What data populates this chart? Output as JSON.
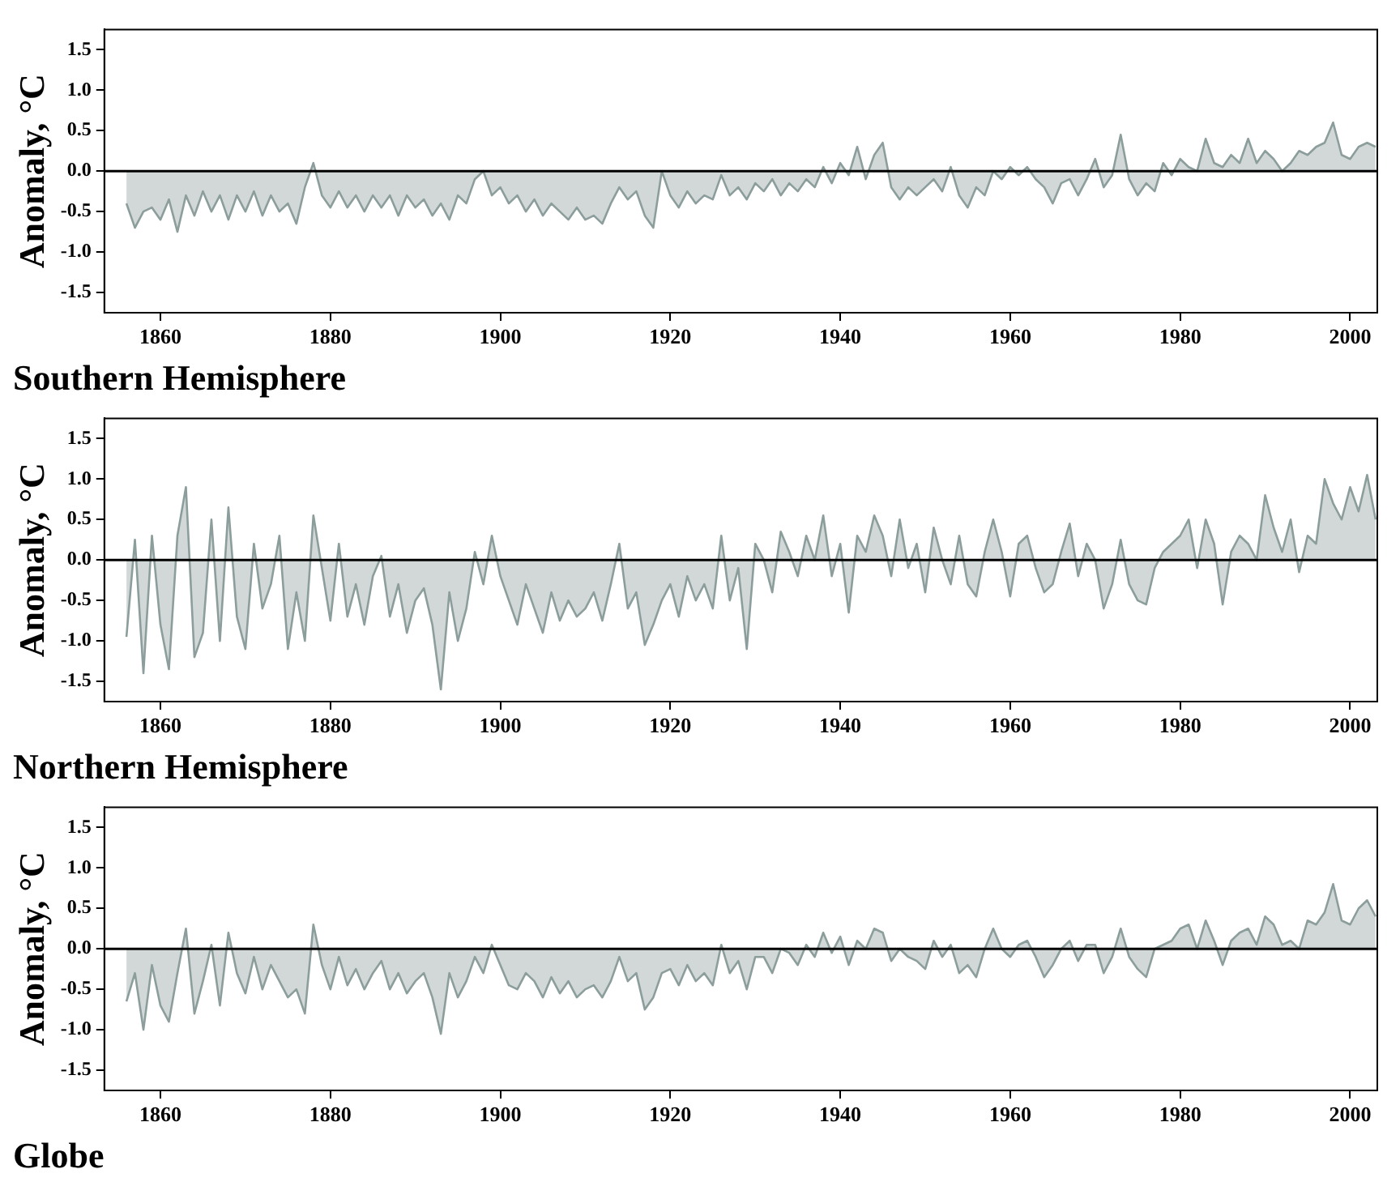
{
  "chart_data": [
    {
      "type": "area",
      "title": "Southern Hemisphere",
      "ylabel": "Anomaly, °C",
      "x": [
        1856,
        1857,
        1858,
        1859,
        1860,
        1861,
        1862,
        1863,
        1864,
        1865,
        1866,
        1867,
        1868,
        1869,
        1870,
        1871,
        1872,
        1873,
        1874,
        1875,
        1876,
        1877,
        1878,
        1879,
        1880,
        1881,
        1882,
        1883,
        1884,
        1885,
        1886,
        1887,
        1888,
        1889,
        1890,
        1891,
        1892,
        1893,
        1894,
        1895,
        1896,
        1897,
        1898,
        1899,
        1900,
        1901,
        1902,
        1903,
        1904,
        1905,
        1906,
        1907,
        1908,
        1909,
        1910,
        1911,
        1912,
        1913,
        1914,
        1915,
        1916,
        1917,
        1918,
        1919,
        1920,
        1921,
        1922,
        1923,
        1924,
        1925,
        1926,
        1927,
        1928,
        1929,
        1930,
        1931,
        1932,
        1933,
        1934,
        1935,
        1936,
        1937,
        1938,
        1939,
        1940,
        1941,
        1942,
        1943,
        1944,
        1945,
        1946,
        1947,
        1948,
        1949,
        1950,
        1951,
        1952,
        1953,
        1954,
        1955,
        1956,
        1957,
        1958,
        1959,
        1960,
        1961,
        1962,
        1963,
        1964,
        1965,
        1966,
        1967,
        1968,
        1969,
        1970,
        1971,
        1972,
        1973,
        1974,
        1975,
        1976,
        1977,
        1978,
        1979,
        1980,
        1981,
        1982,
        1983,
        1984,
        1985,
        1986,
        1987,
        1988,
        1989,
        1990,
        1991,
        1992,
        1993,
        1994,
        1995,
        1996,
        1997,
        1998,
        1999,
        2000,
        2001,
        2002,
        2003
      ],
      "xlim": [
        1853.4,
        2003.2
      ],
      "xticks": [
        1860,
        1880,
        1900,
        1920,
        1940,
        1960,
        1980,
        2000
      ],
      "ylim": [
        -1.75,
        1.75
      ],
      "yticks": [
        {
          "value": -1.5,
          "label": "-1.5"
        },
        {
          "value": -1,
          "label": "-1.0"
        },
        {
          "value": -0.5,
          "label": "-0.5"
        },
        {
          "value": 0,
          "label": "0.0"
        },
        {
          "value": 0.5,
          "label": "0.5"
        },
        {
          "value": 1,
          "label": "1.0"
        },
        {
          "value": 1.5,
          "label": "1.5"
        }
      ],
      "grid": false,
      "legend": false,
      "ref_lines": [
        {
          "axis": "y",
          "value": 0,
          "color": "#000000"
        }
      ],
      "series": [
        {
          "color": "#8c9e9c",
          "values": [
            -0.4,
            -0.7,
            -0.5,
            -0.45,
            -0.6,
            -0.35,
            -0.75,
            -0.3,
            -0.55,
            -0.25,
            -0.5,
            -0.3,
            -0.6,
            -0.3,
            -0.5,
            -0.25,
            -0.55,
            -0.3,
            -0.5,
            -0.4,
            -0.65,
            -0.2,
            0.1,
            -0.3,
            -0.45,
            -0.25,
            -0.45,
            -0.3,
            -0.5,
            -0.3,
            -0.45,
            -0.3,
            -0.55,
            -0.3,
            -0.45,
            -0.35,
            -0.55,
            -0.4,
            -0.6,
            -0.3,
            -0.4,
            -0.1,
            0.0,
            -0.3,
            -0.2,
            -0.4,
            -0.3,
            -0.5,
            -0.35,
            -0.55,
            -0.4,
            -0.5,
            -0.6,
            -0.45,
            -0.6,
            -0.55,
            -0.65,
            -0.4,
            -0.2,
            -0.35,
            -0.25,
            -0.55,
            -0.7,
            0.0,
            -0.3,
            -0.45,
            -0.25,
            -0.4,
            -0.3,
            -0.35,
            -0.05,
            -0.3,
            -0.2,
            -0.35,
            -0.15,
            -0.25,
            -0.1,
            -0.3,
            -0.15,
            -0.25,
            -0.1,
            -0.2,
            0.05,
            -0.15,
            0.1,
            -0.05,
            0.3,
            -0.1,
            0.2,
            0.35,
            -0.2,
            -0.35,
            -0.2,
            -0.3,
            -0.2,
            -0.1,
            -0.25,
            0.05,
            -0.3,
            -0.45,
            -0.2,
            -0.3,
            0.0,
            -0.1,
            0.05,
            -0.05,
            0.05,
            -0.1,
            -0.2,
            -0.4,
            -0.15,
            -0.1,
            -0.3,
            -0.1,
            0.15,
            -0.2,
            -0.05,
            0.45,
            -0.1,
            -0.3,
            -0.15,
            -0.25,
            0.1,
            -0.05,
            0.15,
            0.05,
            0.0,
            0.4,
            0.1,
            0.05,
            0.2,
            0.1,
            0.4,
            0.1,
            0.25,
            0.15,
            0.0,
            0.1,
            0.25,
            0.2,
            0.3,
            0.35,
            0.6,
            0.2,
            0.15,
            0.3,
            0.35,
            0.3
          ]
        }
      ]
    },
    {
      "type": "area",
      "title": "Northern Hemisphere",
      "ylabel": "Anomaly, °C",
      "x": [
        1856,
        1857,
        1858,
        1859,
        1860,
        1861,
        1862,
        1863,
        1864,
        1865,
        1866,
        1867,
        1868,
        1869,
        1870,
        1871,
        1872,
        1873,
        1874,
        1875,
        1876,
        1877,
        1878,
        1879,
        1880,
        1881,
        1882,
        1883,
        1884,
        1885,
        1886,
        1887,
        1888,
        1889,
        1890,
        1891,
        1892,
        1893,
        1894,
        1895,
        1896,
        1897,
        1898,
        1899,
        1900,
        1901,
        1902,
        1903,
        1904,
        1905,
        1906,
        1907,
        1908,
        1909,
        1910,
        1911,
        1912,
        1913,
        1914,
        1915,
        1916,
        1917,
        1918,
        1919,
        1920,
        1921,
        1922,
        1923,
        1924,
        1925,
        1926,
        1927,
        1928,
        1929,
        1930,
        1931,
        1932,
        1933,
        1934,
        1935,
        1936,
        1937,
        1938,
        1939,
        1940,
        1941,
        1942,
        1943,
        1944,
        1945,
        1946,
        1947,
        1948,
        1949,
        1950,
        1951,
        1952,
        1953,
        1954,
        1955,
        1956,
        1957,
        1958,
        1959,
        1960,
        1961,
        1962,
        1963,
        1964,
        1965,
        1966,
        1967,
        1968,
        1969,
        1970,
        1971,
        1972,
        1973,
        1974,
        1975,
        1976,
        1977,
        1978,
        1979,
        1980,
        1981,
        1982,
        1983,
        1984,
        1985,
        1986,
        1987,
        1988,
        1989,
        1990,
        1991,
        1992,
        1993,
        1994,
        1995,
        1996,
        1997,
        1998,
        1999,
        2000,
        2001,
        2002,
        2003
      ],
      "xlim": [
        1853.4,
        2003.2
      ],
      "xticks": [
        1860,
        1880,
        1900,
        1920,
        1940,
        1960,
        1980,
        2000
      ],
      "ylim": [
        -1.75,
        1.75
      ],
      "yticks": [
        {
          "value": -1.5,
          "label": "-1.5"
        },
        {
          "value": -1,
          "label": "-1.0"
        },
        {
          "value": -0.5,
          "label": "-0.5"
        },
        {
          "value": 0,
          "label": "0.0"
        },
        {
          "value": 0.5,
          "label": "0.5"
        },
        {
          "value": 1,
          "label": "1.0"
        },
        {
          "value": 1.5,
          "label": "1.5"
        }
      ],
      "grid": false,
      "legend": false,
      "ref_lines": [
        {
          "axis": "y",
          "value": 0,
          "color": "#000000"
        }
      ],
      "series": [
        {
          "color": "#8c9e9c",
          "values": [
            -0.95,
            0.25,
            -1.4,
            0.3,
            -0.8,
            -1.35,
            0.3,
            0.9,
            -1.2,
            -0.9,
            0.5,
            -1.0,
            0.65,
            -0.7,
            -1.1,
            0.2,
            -0.6,
            -0.3,
            0.3,
            -1.1,
            -0.4,
            -1.0,
            0.55,
            -0.1,
            -0.75,
            0.2,
            -0.7,
            -0.3,
            -0.8,
            -0.2,
            0.05,
            -0.7,
            -0.3,
            -0.9,
            -0.5,
            -0.35,
            -0.8,
            -1.6,
            -0.4,
            -1.0,
            -0.6,
            0.1,
            -0.3,
            0.3,
            -0.2,
            -0.5,
            -0.8,
            -0.3,
            -0.6,
            -0.9,
            -0.4,
            -0.75,
            -0.5,
            -0.7,
            -0.6,
            -0.4,
            -0.75,
            -0.3,
            0.2,
            -0.6,
            -0.4,
            -1.05,
            -0.8,
            -0.5,
            -0.3,
            -0.7,
            -0.2,
            -0.5,
            -0.3,
            -0.6,
            0.3,
            -0.5,
            -0.1,
            -1.1,
            0.2,
            0.0,
            -0.4,
            0.35,
            0.1,
            -0.2,
            0.3,
            0.0,
            0.55,
            -0.2,
            0.2,
            -0.65,
            0.3,
            0.1,
            0.55,
            0.3,
            -0.2,
            0.5,
            -0.1,
            0.2,
            -0.4,
            0.4,
            0.0,
            -0.3,
            0.3,
            -0.3,
            -0.45,
            0.1,
            0.5,
            0.1,
            -0.45,
            0.2,
            0.3,
            -0.1,
            -0.4,
            -0.3,
            0.1,
            0.45,
            -0.2,
            0.2,
            0.0,
            -0.6,
            -0.3,
            0.25,
            -0.3,
            -0.5,
            -0.55,
            -0.1,
            0.1,
            0.2,
            0.3,
            0.5,
            -0.1,
            0.5,
            0.2,
            -0.55,
            0.1,
            0.3,
            0.2,
            0.0,
            0.8,
            0.4,
            0.1,
            0.5,
            -0.15,
            0.3,
            0.2,
            1.0,
            0.7,
            0.5,
            0.9,
            0.6,
            1.05,
            0.5
          ]
        }
      ]
    },
    {
      "type": "area",
      "title": "Globe",
      "ylabel": "Anomaly, °C",
      "x": [
        1856,
        1857,
        1858,
        1859,
        1860,
        1861,
        1862,
        1863,
        1864,
        1865,
        1866,
        1867,
        1868,
        1869,
        1870,
        1871,
        1872,
        1873,
        1874,
        1875,
        1876,
        1877,
        1878,
        1879,
        1880,
        1881,
        1882,
        1883,
        1884,
        1885,
        1886,
        1887,
        1888,
        1889,
        1890,
        1891,
        1892,
        1893,
        1894,
        1895,
        1896,
        1897,
        1898,
        1899,
        1900,
        1901,
        1902,
        1903,
        1904,
        1905,
        1906,
        1907,
        1908,
        1909,
        1910,
        1911,
        1912,
        1913,
        1914,
        1915,
        1916,
        1917,
        1918,
        1919,
        1920,
        1921,
        1922,
        1923,
        1924,
        1925,
        1926,
        1927,
        1928,
        1929,
        1930,
        1931,
        1932,
        1933,
        1934,
        1935,
        1936,
        1937,
        1938,
        1939,
        1940,
        1941,
        1942,
        1943,
        1944,
        1945,
        1946,
        1947,
        1948,
        1949,
        1950,
        1951,
        1952,
        1953,
        1954,
        1955,
        1956,
        1957,
        1958,
        1959,
        1960,
        1961,
        1962,
        1963,
        1964,
        1965,
        1966,
        1967,
        1968,
        1969,
        1970,
        1971,
        1972,
        1973,
        1974,
        1975,
        1976,
        1977,
        1978,
        1979,
        1980,
        1981,
        1982,
        1983,
        1984,
        1985,
        1986,
        1987,
        1988,
        1989,
        1990,
        1991,
        1992,
        1993,
        1994,
        1995,
        1996,
        1997,
        1998,
        1999,
        2000,
        2001,
        2002,
        2003
      ],
      "xlim": [
        1853.4,
        2003.2
      ],
      "xticks": [
        1860,
        1880,
        1900,
        1920,
        1940,
        1960,
        1980,
        2000
      ],
      "ylim": [
        -1.75,
        1.75
      ],
      "yticks": [
        {
          "value": -1.5,
          "label": "-1.5"
        },
        {
          "value": -1,
          "label": "-1.0"
        },
        {
          "value": -0.5,
          "label": "-0.5"
        },
        {
          "value": 0,
          "label": "0.0"
        },
        {
          "value": 0.5,
          "label": "0.5"
        },
        {
          "value": 1,
          "label": "1.0"
        },
        {
          "value": 1.5,
          "label": "1.5"
        }
      ],
      "grid": false,
      "legend": false,
      "ref_lines": [
        {
          "axis": "y",
          "value": 0,
          "color": "#000000"
        }
      ],
      "series": [
        {
          "color": "#8c9e9c",
          "values": [
            -0.65,
            -0.3,
            -1.0,
            -0.2,
            -0.7,
            -0.9,
            -0.3,
            0.25,
            -0.8,
            -0.4,
            0.05,
            -0.7,
            0.2,
            -0.3,
            -0.55,
            -0.1,
            -0.5,
            -0.2,
            -0.4,
            -0.6,
            -0.5,
            -0.8,
            0.3,
            -0.2,
            -0.5,
            -0.1,
            -0.45,
            -0.25,
            -0.5,
            -0.3,
            -0.15,
            -0.5,
            -0.3,
            -0.55,
            -0.4,
            -0.3,
            -0.6,
            -1.05,
            -0.3,
            -0.6,
            -0.4,
            -0.1,
            -0.3,
            0.05,
            -0.2,
            -0.45,
            -0.5,
            -0.3,
            -0.4,
            -0.6,
            -0.35,
            -0.55,
            -0.4,
            -0.6,
            -0.5,
            -0.45,
            -0.6,
            -0.4,
            -0.1,
            -0.4,
            -0.3,
            -0.75,
            -0.6,
            -0.3,
            -0.25,
            -0.45,
            -0.2,
            -0.4,
            -0.3,
            -0.45,
            0.05,
            -0.3,
            -0.15,
            -0.5,
            -0.1,
            -0.1,
            -0.3,
            0.0,
            -0.05,
            -0.2,
            0.05,
            -0.1,
            0.2,
            -0.05,
            0.15,
            -0.2,
            0.1,
            0.0,
            0.25,
            0.2,
            -0.15,
            0.0,
            -0.1,
            -0.15,
            -0.25,
            0.1,
            -0.1,
            0.05,
            -0.3,
            -0.2,
            -0.35,
            0.0,
            0.25,
            0.0,
            -0.1,
            0.05,
            0.1,
            -0.1,
            -0.35,
            -0.2,
            0.0,
            0.1,
            -0.15,
            0.05,
            0.05,
            -0.3,
            -0.1,
            0.25,
            -0.1,
            -0.25,
            -0.35,
            0.0,
            0.05,
            0.1,
            0.25,
            0.3,
            0.0,
            0.35,
            0.1,
            -0.2,
            0.1,
            0.2,
            0.25,
            0.05,
            0.4,
            0.3,
            0.05,
            0.1,
            0.0,
            0.35,
            0.3,
            0.45,
            0.8,
            0.35,
            0.3,
            0.5,
            0.6,
            0.4
          ]
        }
      ]
    }
  ]
}
